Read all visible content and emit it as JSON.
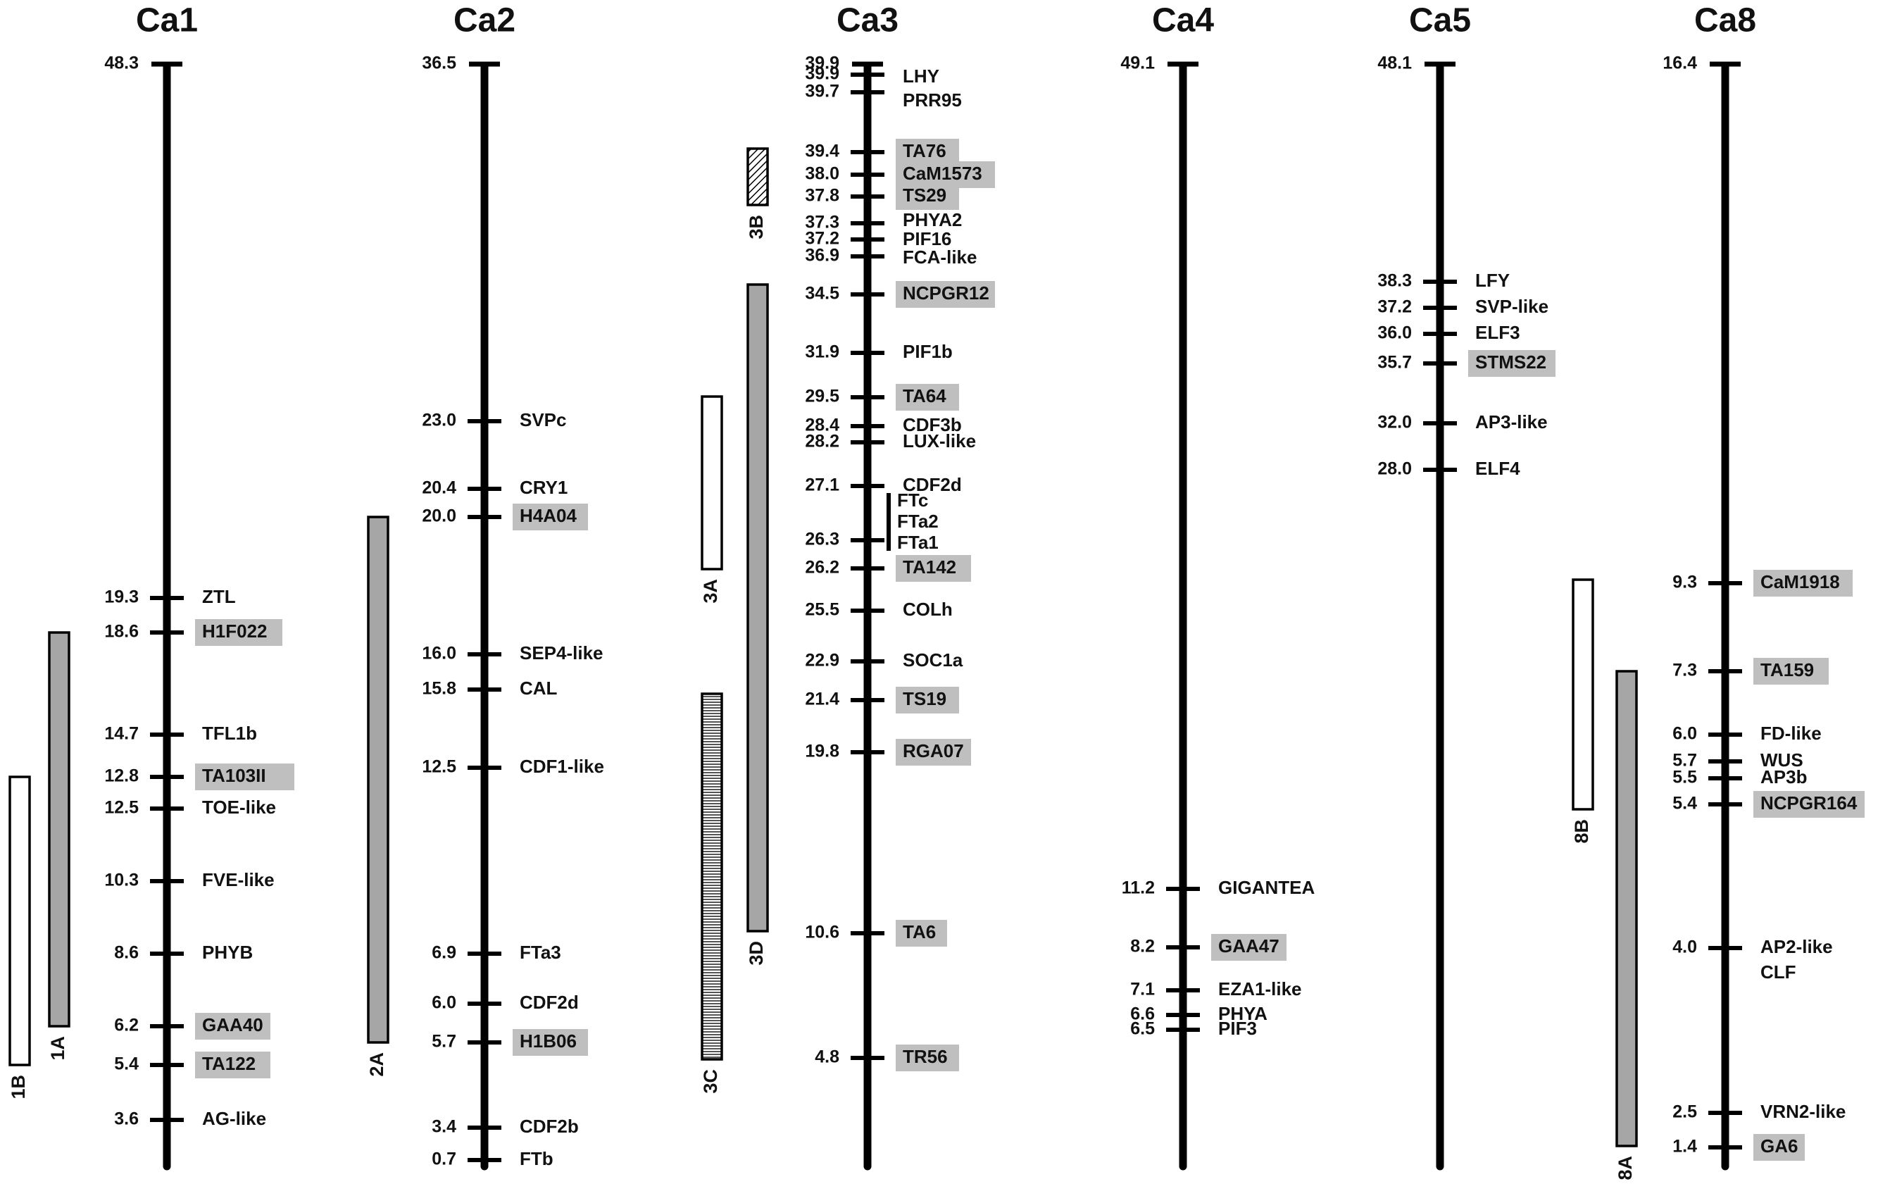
{
  "chromosomes": [
    {
      "name": "Ca1",
      "top": 48.3,
      "markers": [
        {
          "pos": "19.3",
          "label": "ZTL",
          "hl": false
        },
        {
          "pos": "18.6",
          "label": "H1F022",
          "hl": true
        },
        {
          "pos": "14.7",
          "label": "TFL1b",
          "hl": false
        },
        {
          "pos": "12.8",
          "label": "TA103II",
          "hl": true
        },
        {
          "pos": "12.5",
          "label": "TOE-like",
          "hl": false
        },
        {
          "pos": "10.3",
          "label": "FVE-like",
          "hl": false
        },
        {
          "pos": "8.6",
          "label": "PHYB",
          "hl": false
        },
        {
          "pos": "6.2",
          "label": "GAA40",
          "hl": true
        },
        {
          "pos": "5.4",
          "label": "TA122",
          "hl": true
        },
        {
          "pos": "3.6",
          "label": "AG-like",
          "hl": false
        }
      ],
      "regions": [
        {
          "name": "1A",
          "from": 18.6,
          "to": 6.2,
          "style": "gray"
        },
        {
          "name": "1B",
          "from": 12.8,
          "to": 5.4,
          "style": "white"
        }
      ]
    },
    {
      "name": "Ca2",
      "top": 36.5,
      "markers": [
        {
          "pos": "23.0",
          "label": "SVPc",
          "hl": false
        },
        {
          "pos": "20.4",
          "label": "CRY1",
          "hl": false
        },
        {
          "pos": "20.0",
          "label": "H4A04",
          "hl": true
        },
        {
          "pos": "16.0",
          "label": "SEP4-like",
          "hl": false
        },
        {
          "pos": "15.8",
          "label": "CAL",
          "hl": false
        },
        {
          "pos": "12.5",
          "label": "CDF1-like",
          "hl": false
        },
        {
          "pos": "6.9",
          "label": "FTa3",
          "hl": false
        },
        {
          "pos": "6.0",
          "label": "CDF2d",
          "hl": false
        },
        {
          "pos": "5.7",
          "label": "H1B06",
          "hl": true
        },
        {
          "pos": "3.4",
          "label": "CDF2b",
          "hl": false
        },
        {
          "pos": "0.7",
          "label": "FTb",
          "hl": false
        }
      ],
      "regions": [
        {
          "name": "2A",
          "from": 20.0,
          "to": 5.7,
          "style": "gray"
        }
      ]
    },
    {
      "name": "Ca3",
      "top": 39.9,
      "markers": [
        {
          "pos": "39.9",
          "label": "LHY",
          "hl": false
        },
        {
          "pos": "39.7",
          "label": "PRR95",
          "hl": false
        },
        {
          "pos": "39.4",
          "label": "TA76",
          "hl": true
        },
        {
          "pos": "38.0",
          "label": "CaM1573",
          "hl": true
        },
        {
          "pos": "37.8",
          "label": "TS29",
          "hl": true
        },
        {
          "pos": "37.3",
          "label": "PHYA2",
          "hl": false
        },
        {
          "pos": "37.2",
          "label": "PIF16",
          "hl": false
        },
        {
          "pos": "36.9",
          "label": "FCA-like",
          "hl": false
        },
        {
          "pos": "34.5",
          "label": "NCPGR12",
          "hl": true
        },
        {
          "pos": "31.9",
          "label": "PIF1b",
          "hl": false
        },
        {
          "pos": "29.5",
          "label": "TA64",
          "hl": true
        },
        {
          "pos": "28.4",
          "label": "CDF3b",
          "hl": false
        },
        {
          "pos": "28.2",
          "label": "LUX-like",
          "hl": false
        },
        {
          "pos": "27.1",
          "label": "CDF2d",
          "hl": false
        },
        {
          "pos": "26.3",
          "label": "",
          "hl": false
        },
        {
          "pos": "26.2",
          "label": "TA142",
          "hl": true
        },
        {
          "pos": "25.5",
          "label": "COLh",
          "hl": false
        },
        {
          "pos": "22.9",
          "label": "SOC1a",
          "hl": false
        },
        {
          "pos": "21.4",
          "label": "TS19",
          "hl": true
        },
        {
          "pos": "19.8",
          "label": "RGA07",
          "hl": true
        },
        {
          "pos": "10.6",
          "label": "TA6",
          "hl": true
        },
        {
          "pos": "4.8",
          "label": "TR56",
          "hl": true
        }
      ],
      "group": {
        "labels": [
          "FTc",
          "FTa2",
          "FTa1"
        ]
      },
      "regions": [
        {
          "name": "3B",
          "from": 39.4,
          "to": 37.8,
          "style": "hatch"
        },
        {
          "name": "3D",
          "from": 34.5,
          "to": 10.6,
          "style": "gray"
        },
        {
          "name": "3A",
          "from": 29.5,
          "to": 26.2,
          "style": "white"
        },
        {
          "name": "3C",
          "from": 21.4,
          "to": 4.8,
          "style": "stripe"
        }
      ]
    },
    {
      "name": "Ca4",
      "top": 49.1,
      "markers": [
        {
          "pos": "11.2",
          "label": "GIGANTEA",
          "hl": false
        },
        {
          "pos": "8.2",
          "label": "GAA47",
          "hl": true
        },
        {
          "pos": "7.1",
          "label": "EZA1-like",
          "hl": false
        },
        {
          "pos": "6.6",
          "label": "PHYA",
          "hl": false
        },
        {
          "pos": "6.5",
          "label": "PIF3",
          "hl": false
        }
      ],
      "regions": []
    },
    {
      "name": "Ca5",
      "top": 48.1,
      "markers": [
        {
          "pos": "38.3",
          "label": "LFY",
          "hl": false
        },
        {
          "pos": "37.2",
          "label": "SVP-like",
          "hl": false
        },
        {
          "pos": "36.0",
          "label": "ELF3",
          "hl": false
        },
        {
          "pos": "35.7",
          "label": "STMS22",
          "hl": true
        },
        {
          "pos": "32.0",
          "label": "AP3-like",
          "hl": false
        },
        {
          "pos": "28.0",
          "label": "ELF4",
          "hl": false
        }
      ],
      "regions": []
    },
    {
      "name": "Ca8",
      "top": 16.4,
      "markers": [
        {
          "pos": "9.3",
          "label": "CaM1918",
          "hl": true
        },
        {
          "pos": "7.3",
          "label": "TA159",
          "hl": true
        },
        {
          "pos": "6.0",
          "label": "FD-like",
          "hl": false
        },
        {
          "pos": "5.7",
          "label": "WUS",
          "hl": false
        },
        {
          "pos": "5.5",
          "label": "AP3b",
          "hl": false
        },
        {
          "pos": "5.4",
          "label": "NCPGR164",
          "hl": true
        },
        {
          "pos": "4.0",
          "label": "AP2-like",
          "label2": "CLF",
          "hl": false
        },
        {
          "pos": "2.5",
          "label": "VRN2-like",
          "hl": false
        },
        {
          "pos": "1.4",
          "label": "GA6",
          "hl": true
        }
      ],
      "regions": [
        {
          "name": "8B",
          "from": 9.0,
          "to": 5.2,
          "style": "white"
        },
        {
          "name": "8A",
          "from": 7.3,
          "to": 1.4,
          "style": "gray"
        }
      ]
    }
  ],
  "colors": {
    "chromosome": "#000000",
    "highlight": "#bfbfbf",
    "region_gray": "#a6a6a6",
    "region_white": "#ffffff"
  }
}
